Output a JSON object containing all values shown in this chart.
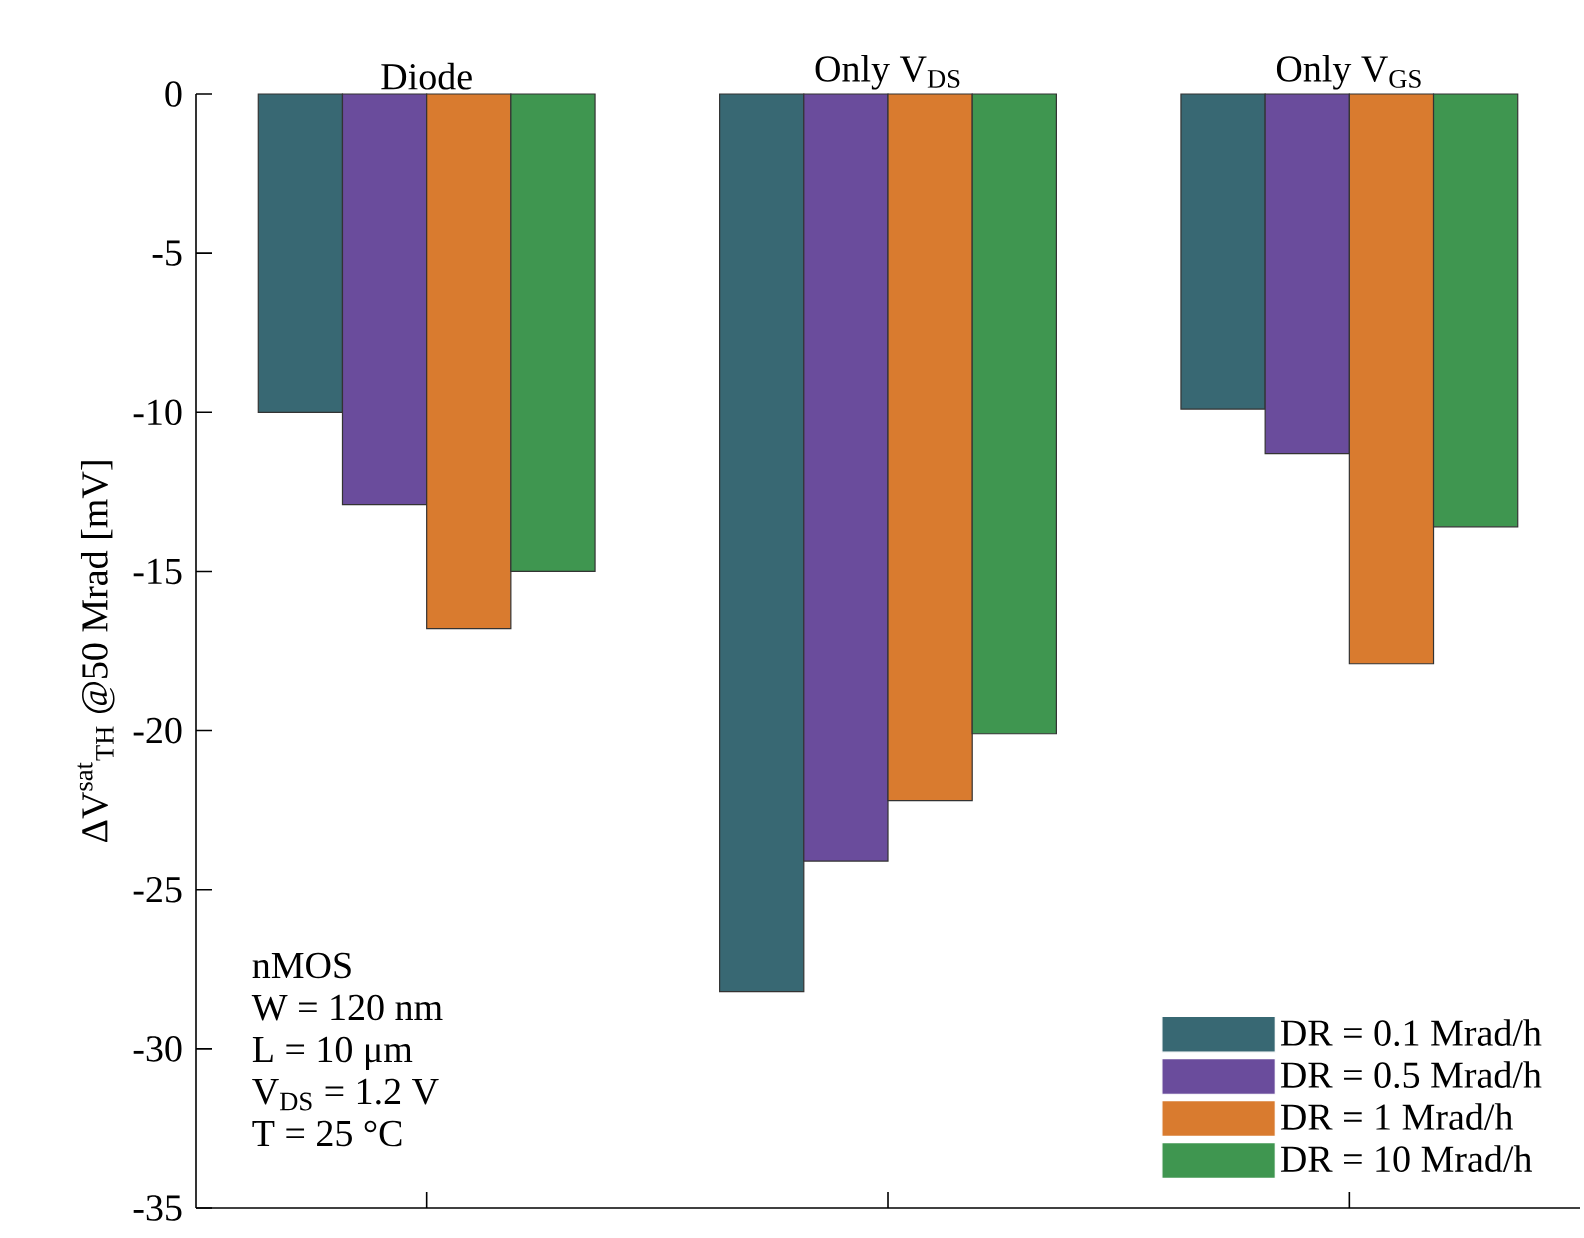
{
  "chart_data": {
    "type": "bar",
    "categories": [
      "Diode",
      "Only V$_{DS}$",
      "Only V$_{GS}$"
    ],
    "ylabel": "ΔV$^{sat}$$_{TH}$ @50 Mrad [mV]",
    "ylim": [
      -35,
      0
    ],
    "yticks": [
      -35,
      -30,
      -25,
      -20,
      -15,
      -10,
      -5,
      0
    ],
    "series": [
      {
        "name": "DR = 0.1 Mrad/h",
        "color": "#386873",
        "values": [
          -10.0,
          -28.2,
          -9.9
        ]
      },
      {
        "name": "DR = 0.5 Mrad/h",
        "color": "#6a4c9c",
        "values": [
          -12.9,
          -24.1,
          -11.3
        ]
      },
      {
        "name": "DR = 1 Mrad/h",
        "color": "#d97b2f",
        "values": [
          -16.8,
          -22.2,
          -17.9
        ]
      },
      {
        "name": "DR = 10 Mrad/h",
        "color": "#3f9650",
        "values": [
          -15.0,
          -20.1,
          -13.6
        ]
      }
    ],
    "annotations": [
      "nMOS",
      "W = 120 nm",
      "L = 10 μm",
      "V$_{DS}$ = 1.2 V",
      "T = 25 °C"
    ],
    "legend": "bottom right"
  }
}
